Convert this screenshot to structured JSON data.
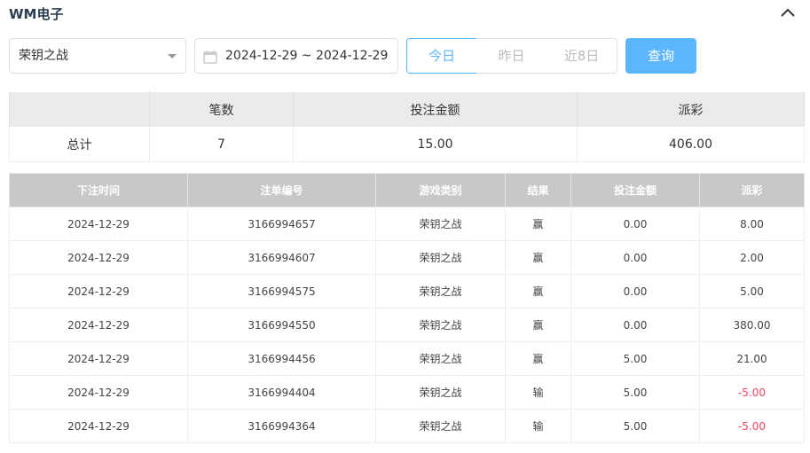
{
  "header": {
    "title": "WM电子",
    "collapse_icon": "chevron-up-icon"
  },
  "filters": {
    "game_select": "荣钥之战",
    "date_range": "2024-12-29 ~ 2024-12-29",
    "quick": [
      "今日",
      "昨日",
      "近8日"
    ],
    "active_quick": "今日",
    "query_label": "查询",
    "accent": "#5cb6ff"
  },
  "summary": {
    "headers": [
      "",
      "笔数",
      "投注金额",
      "派彩"
    ],
    "row": [
      "总计",
      "7",
      "15.00",
      "406.00"
    ]
  },
  "details": {
    "headers": [
      "下注时间",
      "注单编号",
      "游戏类别",
      "结果",
      "投注金额",
      "派彩"
    ],
    "rows": [
      [
        "2024-12-29",
        "3166994657",
        "荣钥之战",
        "赢",
        "0.00",
        "8.00"
      ],
      [
        "2024-12-29",
        "3166994607",
        "荣钥之战",
        "赢",
        "0.00",
        "2.00"
      ],
      [
        "2024-12-29",
        "3166994575",
        "荣钥之战",
        "赢",
        "0.00",
        "5.00"
      ],
      [
        "2024-12-29",
        "3166994550",
        "荣钥之战",
        "赢",
        "0.00",
        "380.00"
      ],
      [
        "2024-12-29",
        "3166994456",
        "荣钥之战",
        "赢",
        "5.00",
        "21.00"
      ],
      [
        "2024-12-29",
        "3166994404",
        "荣钥之战",
        "输",
        "5.00",
        "-5.00"
      ],
      [
        "2024-12-29",
        "3166994364",
        "荣钥之战",
        "输",
        "5.00",
        "-5.00"
      ]
    ],
    "negative_color": "#f5475f"
  }
}
